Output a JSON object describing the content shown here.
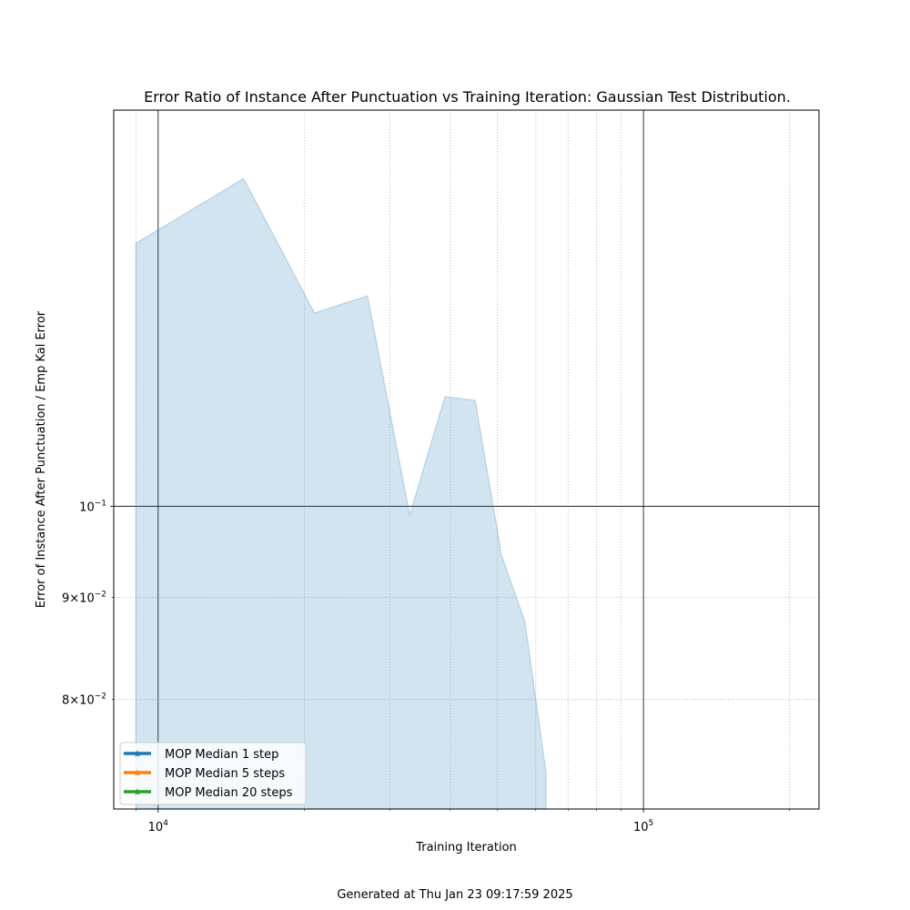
{
  "chart_data": {
    "type": "area",
    "title": "Error Ratio of Instance After Punctuation vs Training Iteration: Gaussian Test Distribution.",
    "xlabel": "Training Iteration",
    "ylabel": "Error of Instance After Punctuation / Emp Kal Error",
    "x_scale": "log",
    "y_scale": "log",
    "xlim": [
      8100,
      230000
    ],
    "ylim": [
      0.0705,
      0.158
    ],
    "x_major_ticks": [
      {
        "value": 10000,
        "base": "10",
        "exp": "4"
      },
      {
        "value": 100000,
        "base": "10",
        "exp": "5"
      }
    ],
    "x_minor_ticks": [
      9000,
      20000,
      30000,
      40000,
      50000,
      60000,
      70000,
      80000,
      90000,
      200000
    ],
    "y_major_ticks": [
      {
        "value": 0.1,
        "base": "10",
        "exp": "−1"
      }
    ],
    "y_minor_ticks": [
      {
        "value": 0.09,
        "mantissa": "9",
        "base": "10",
        "exp": "−2"
      },
      {
        "value": 0.08,
        "mantissa": "8",
        "base": "10",
        "exp": "−2"
      }
    ],
    "grid": true,
    "legend_position": "lower-left",
    "band": {
      "color": "#1f77b4",
      "opacity": 0.2,
      "x": [
        9000,
        15000,
        21000,
        27000,
        33000,
        39000,
        45000,
        51000,
        57000,
        63000
      ],
      "upper": [
        0.1355,
        0.146,
        0.125,
        0.1275,
        0.099,
        0.1135,
        0.113,
        0.0945,
        0.0875,
        0.0735
      ],
      "lower": [
        0.0705,
        0.0705,
        0.0705,
        0.0705,
        0.0705,
        0.0705,
        0.0705,
        0.0705,
        0.0705,
        0.0705
      ]
    },
    "series": [
      {
        "name": "MOP Median 1 step",
        "color": "#1f77b4",
        "marker": "star",
        "values": []
      },
      {
        "name": "MOP Median 5 steps",
        "color": "#ff7f0e",
        "marker": "star",
        "values": []
      },
      {
        "name": "MOP Median 20 steps",
        "color": "#2ca02c",
        "marker": "star",
        "values": []
      }
    ]
  },
  "footer": {
    "text": "Generated at Thu Jan 23 09:17:59 2025"
  }
}
